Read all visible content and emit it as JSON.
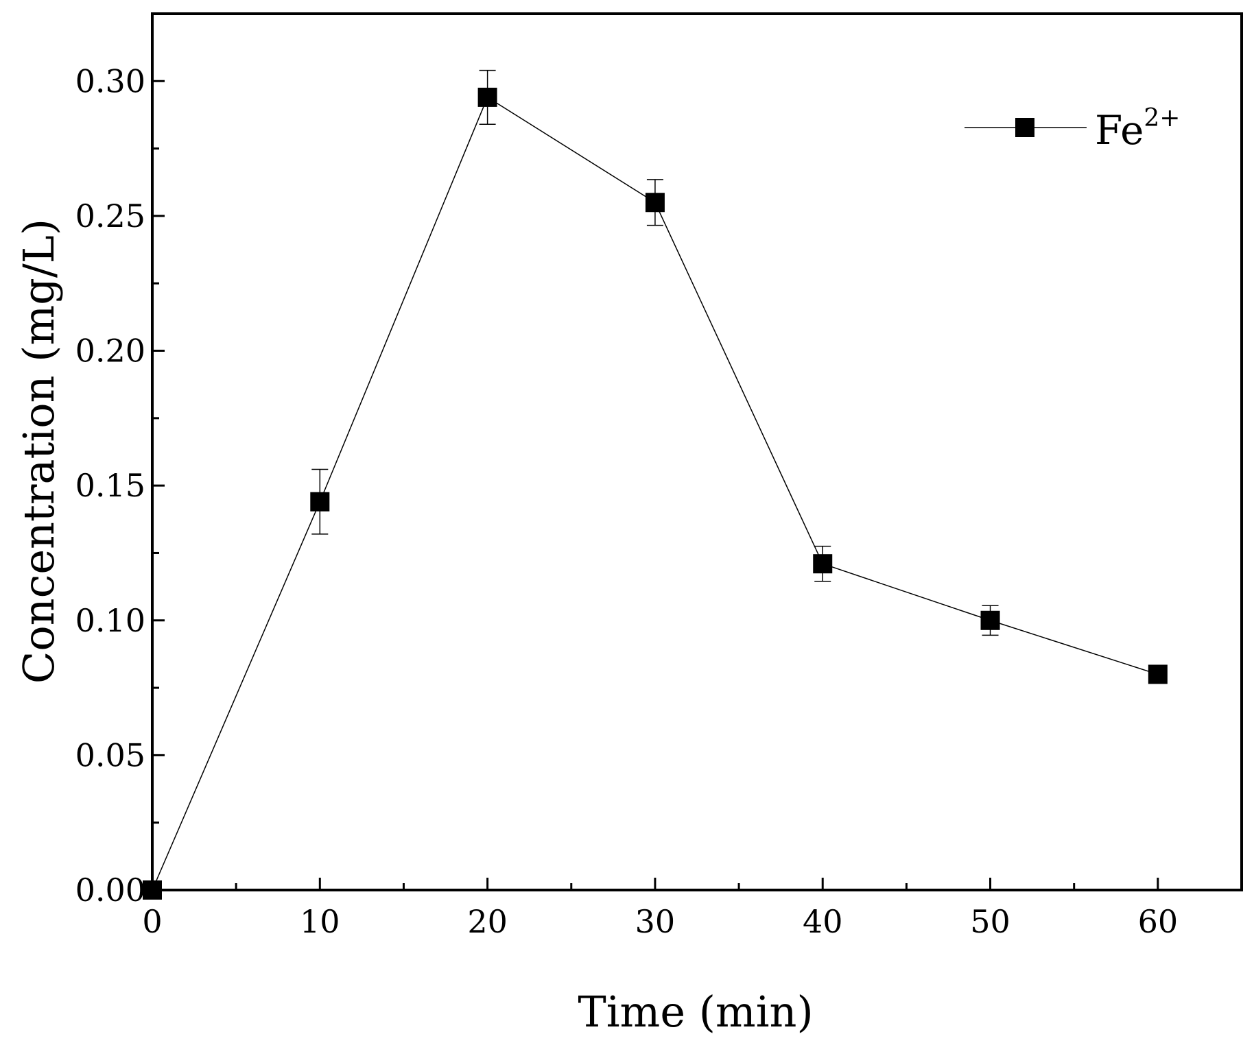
{
  "chart_data": {
    "type": "line",
    "title": "",
    "xlabel": "Time (min)",
    "ylabel": "Concentration (mg/L)",
    "xlim": [
      0,
      65
    ],
    "ylim": [
      0,
      0.325
    ],
    "xticks": [
      0,
      10,
      20,
      30,
      40,
      50,
      60
    ],
    "xtick_labels": [
      "0",
      "10",
      "20",
      "30",
      "40",
      "50",
      "60"
    ],
    "yticks": [
      0.0,
      0.05,
      0.1,
      0.15,
      0.2,
      0.25,
      0.3
    ],
    "ytick_labels": [
      "0.00",
      "0.05",
      "0.10",
      "0.15",
      "0.20",
      "0.25",
      "0.30"
    ],
    "x_minor_step": 5,
    "y_minor_step": 0.025,
    "grid": false,
    "legend_position": "top-right",
    "series": [
      {
        "name": "Fe",
        "name_superscript": "2+",
        "marker": "square",
        "color": "#000000",
        "x": [
          0,
          10,
          20,
          30,
          40,
          50,
          60
        ],
        "y": [
          0.0,
          0.144,
          0.294,
          0.255,
          0.121,
          0.1,
          0.08
        ],
        "error": [
          0,
          0.012,
          0.01,
          0.0085,
          0.0065,
          0.0055,
          0
        ]
      }
    ]
  }
}
